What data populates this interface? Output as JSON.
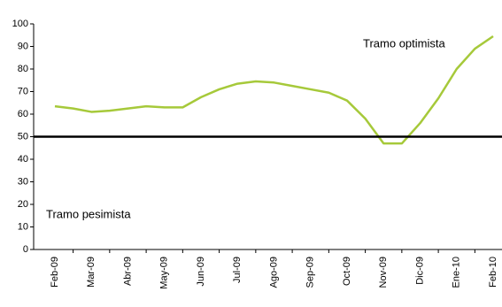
{
  "chart_data": {
    "type": "line",
    "categories": [
      "Feb-09",
      null,
      "Mar-09",
      null,
      "Abr-09",
      null,
      "May-09",
      null,
      "Jun-09",
      null,
      "Jul-09",
      null,
      "Ago-09",
      null,
      "Sep-09",
      null,
      "Oct-09",
      null,
      "Nov-09",
      null,
      "Dic-09",
      null,
      "Ene-10",
      null,
      "Feb-10"
    ],
    "series": [
      {
        "color": "#a6c93a",
        "values": [
          63.5,
          62.5,
          61,
          61.5,
          62.5,
          63.5,
          63,
          63,
          67.5,
          71,
          73.5,
          74.5,
          74,
          72.5,
          71,
          69.5,
          66,
          58,
          47,
          47,
          56,
          67,
          80,
          89,
          94.5
        ]
      }
    ],
    "ylim": [
      0,
      100
    ],
    "yticks": [
      0,
      10,
      20,
      30,
      40,
      50,
      60,
      70,
      80,
      90,
      100
    ],
    "reference_line": 50,
    "annotations": [
      "Tramo optimista",
      "Tramo pesimista"
    ]
  }
}
